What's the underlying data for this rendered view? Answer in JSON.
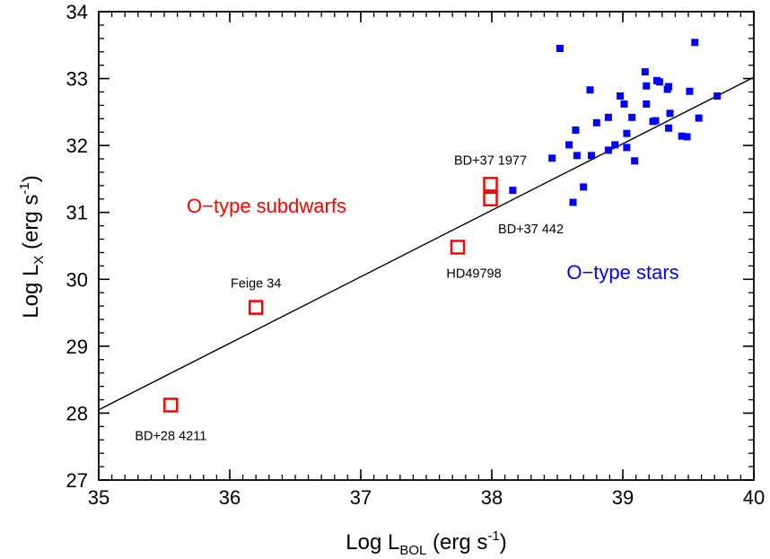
{
  "chart_data": {
    "type": "scatter",
    "xlabel": {
      "main": "Log L",
      "sub": "BOL",
      "unit_pre": " (erg s",
      "sup": "-1",
      "unit_post": ")"
    },
    "ylabel": {
      "main": "Log L",
      "sub": "X",
      "unit_pre": " (erg s",
      "sup": "-1",
      "unit_post": ")"
    },
    "xlim": [
      35,
      40
    ],
    "ylim": [
      27,
      34
    ],
    "x_ticks": [
      "35",
      "36",
      "37",
      "38",
      "39",
      "40"
    ],
    "y_ticks": [
      "27",
      "28",
      "29",
      "30",
      "31",
      "32",
      "33",
      "34"
    ],
    "grid": false,
    "fit_line": {
      "x": [
        35,
        40
      ],
      "y": [
        28.05,
        33.02
      ]
    },
    "group_labels": [
      {
        "text": "O−type subdwarfs",
        "color": "#ff0000"
      },
      {
        "text": "O−type stars",
        "color": "#0000ff"
      }
    ],
    "series": [
      {
        "name": "O-type subdwarfs",
        "marker": "open-square",
        "color": "#ff0000",
        "points": [
          {
            "x": 35.55,
            "y": 28.12,
            "label": "BD+28 4211"
          },
          {
            "x": 36.2,
            "y": 29.58,
            "label": "Feige 34"
          },
          {
            "x": 37.74,
            "y": 30.48,
            "label": "HD49798"
          },
          {
            "x": 37.99,
            "y": 31.42,
            "label": "BD+37 1977"
          },
          {
            "x": 37.99,
            "y": 31.2,
            "label": "BD+37 442"
          }
        ]
      },
      {
        "name": "O-type stars",
        "marker": "filled-square",
        "color": "#0000ff",
        "points": [
          {
            "x": 38.16,
            "y": 31.33
          },
          {
            "x": 38.46,
            "y": 31.81
          },
          {
            "x": 38.52,
            "y": 33.45
          },
          {
            "x": 38.59,
            "y": 32.01
          },
          {
            "x": 38.62,
            "y": 31.15
          },
          {
            "x": 38.64,
            "y": 32.23
          },
          {
            "x": 38.65,
            "y": 31.85
          },
          {
            "x": 38.7,
            "y": 31.38
          },
          {
            "x": 38.75,
            "y": 32.83
          },
          {
            "x": 38.76,
            "y": 31.85
          },
          {
            "x": 38.8,
            "y": 32.34
          },
          {
            "x": 38.89,
            "y": 32.42
          },
          {
            "x": 38.89,
            "y": 31.93
          },
          {
            "x": 38.94,
            "y": 32.01
          },
          {
            "x": 38.98,
            "y": 32.74
          },
          {
            "x": 39.01,
            "y": 32.62
          },
          {
            "x": 39.03,
            "y": 32.18
          },
          {
            "x": 39.03,
            "y": 31.97
          },
          {
            "x": 39.07,
            "y": 32.42
          },
          {
            "x": 39.09,
            "y": 31.77
          },
          {
            "x": 39.17,
            "y": 33.1
          },
          {
            "x": 39.18,
            "y": 32.89
          },
          {
            "x": 39.18,
            "y": 32.62
          },
          {
            "x": 39.23,
            "y": 32.36
          },
          {
            "x": 39.25,
            "y": 32.37
          },
          {
            "x": 39.26,
            "y": 32.97
          },
          {
            "x": 39.28,
            "y": 32.95
          },
          {
            "x": 39.34,
            "y": 32.84
          },
          {
            "x": 39.35,
            "y": 32.88
          },
          {
            "x": 39.35,
            "y": 32.26
          },
          {
            "x": 39.36,
            "y": 32.48
          },
          {
            "x": 39.45,
            "y": 32.14
          },
          {
            "x": 39.49,
            "y": 32.13
          },
          {
            "x": 39.51,
            "y": 32.81
          },
          {
            "x": 39.55,
            "y": 33.54
          },
          {
            "x": 39.58,
            "y": 32.41
          },
          {
            "x": 39.72,
            "y": 32.74
          }
        ]
      }
    ]
  }
}
